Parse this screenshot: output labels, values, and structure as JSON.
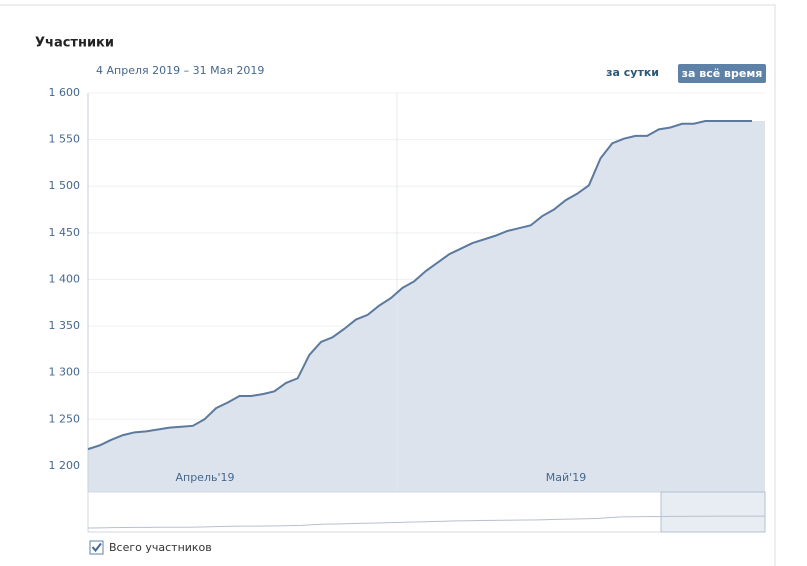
{
  "chart_data": {
    "type": "area",
    "title": "Участники",
    "subtitle": "4 Апреля 2019 – 31 Мая 2019",
    "buttons": [
      "за сутки",
      "за всё время"
    ],
    "legend_label": "Всего участников",
    "month_labels": [
      "Апрель'19",
      "Май'19"
    ],
    "color": "#5b7a9e",
    "fill": "#dce3ec",
    "values": [
      1218,
      1222,
      1228,
      1233,
      1236,
      1237,
      1239,
      1241,
      1242,
      1243,
      1250,
      1262,
      1268,
      1275,
      1275,
      1277,
      1280,
      1289,
      1294,
      1319,
      1333,
      1338,
      1347,
      1357,
      1362,
      1372,
      1380,
      1391,
      1398,
      1409,
      1418,
      1427,
      1433,
      1439,
      1443,
      1447,
      1452,
      1455,
      1458,
      1468,
      1475,
      1485,
      1492,
      1501,
      1530,
      1546,
      1551,
      1554,
      1554,
      1561,
      1563,
      1567,
      1567,
      1570,
      1570,
      1570,
      1570,
      1570
    ],
    "ylim": [
      1172,
      1600
    ],
    "yticks": [
      {
        "value": 1200,
        "label": "1 200"
      },
      {
        "value": 1250,
        "label": "1 250"
      },
      {
        "value": 1300,
        "label": "1 300"
      },
      {
        "value": 1350,
        "label": "1 350"
      },
      {
        "value": 1400,
        "label": "1 400"
      },
      {
        "value": 1450,
        "label": "1 450"
      },
      {
        "value": 1500,
        "label": "1 500"
      },
      {
        "value": 1550,
        "label": "1 550"
      },
      {
        "value": 1600,
        "label": "1 600"
      }
    ],
    "grid": true
  }
}
